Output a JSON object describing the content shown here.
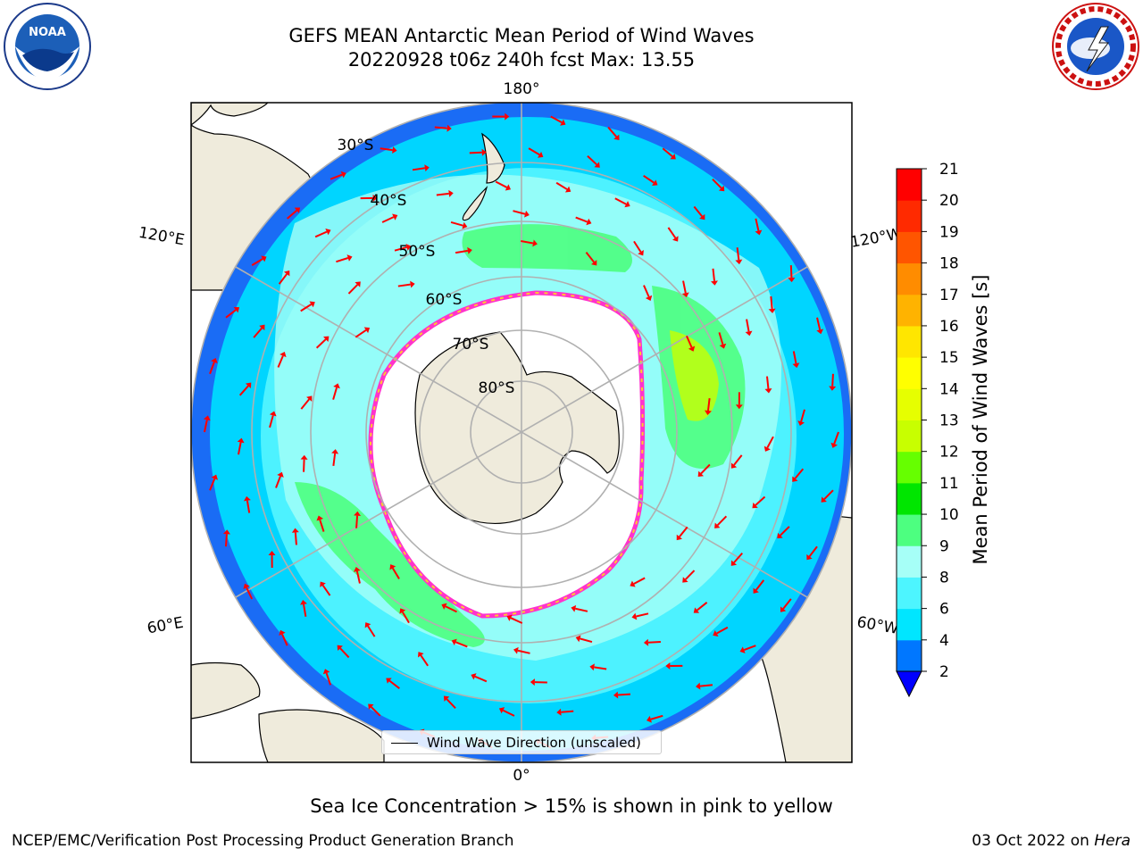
{
  "title_line1": "GEFS MEAN Antarctic Mean Period of Wind Waves",
  "title_line2": "20220928 t06z 240h fcst   Max: 13.55",
  "logos": {
    "left": "noaa-logo",
    "right": "nws-logo"
  },
  "map": {
    "projection": "south-polar-stereographic",
    "longitude_labels": [
      "180°",
      "120°E",
      "120°W",
      "60°E",
      "60°W",
      "0°"
    ],
    "latitude_labels": [
      "30°S",
      "40°S",
      "50°S",
      "60°S",
      "70°S",
      "80°S"
    ],
    "land_color": "#efebdc",
    "arrow_color": "#ff0000",
    "legend_label": "Wind Wave Direction (unscaled)"
  },
  "colorbar": {
    "title": "Mean Period of Wind Waves [s]",
    "ticks": [
      "2",
      "4",
      "6",
      "8",
      "9",
      "10",
      "11",
      "12",
      "13",
      "14",
      "15",
      "16",
      "17",
      "18",
      "19",
      "20",
      "21"
    ],
    "colors": [
      "#0077ff",
      "#00e6ff",
      "#4df5ff",
      "#a6fff7",
      "#4dff80",
      "#00e600",
      "#66ff00",
      "#c8ff00",
      "#e6ff00",
      "#ffff00",
      "#ffe600",
      "#ffb300",
      "#ff8c00",
      "#ff5500",
      "#ff2a00",
      "#ff0000"
    ],
    "under_color": "#0000ff"
  },
  "sea_ice_note": "Sea Ice Concentration > 15% is shown in pink to yellow",
  "footer_left": "NCEP/EMC/Verification Post Processing Product Generation Branch",
  "footer_right_date": "03 Oct 2022 on",
  "footer_right_host": "Hera"
}
